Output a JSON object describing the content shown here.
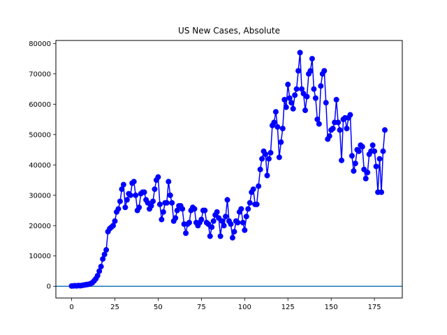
{
  "chart_data": {
    "type": "line",
    "title": "US New Cases, Absolute",
    "xlabel": "",
    "ylabel": "",
    "xlim": [
      -9.1,
      191.1
    ],
    "ylim": [
      -3856,
      81000
    ],
    "xticks": [
      0,
      25,
      50,
      75,
      100,
      125,
      150,
      175
    ],
    "yticks": [
      0,
      10000,
      20000,
      30000,
      40000,
      50000,
      60000,
      70000,
      80000
    ],
    "grid": false,
    "legend": "none",
    "baseline": 0,
    "colors": {
      "series": "#0000ff",
      "baseline": "#1f77b4"
    },
    "series": [
      {
        "values": [
          100,
          150,
          200,
          150,
          250,
          200,
          300,
          400,
          500,
          600,
          700,
          900,
          1200,
          1800,
          2500,
          3500,
          5000,
          6500,
          9000,
          10500,
          12000,
          18000,
          19000,
          19500,
          20000,
          21500,
          24500,
          25500,
          28000,
          32000,
          33500,
          26000,
          28500,
          30500,
          30000,
          34000,
          34500,
          30000,
          25000,
          26000,
          30500,
          31000,
          31000,
          28500,
          27500,
          25500,
          26500,
          28000,
          32000,
          35000,
          36000,
          27000,
          22000,
          24500,
          27500,
          27500,
          34500,
          30000,
          27500,
          21500,
          22500,
          25000,
          26500,
          26500,
          25500,
          20500,
          17500,
          20500,
          21000,
          25000,
          26000,
          25500,
          21000,
          20000,
          21000,
          22000,
          25000,
          25000,
          21000,
          20500,
          16500,
          19500,
          21500,
          23500,
          24500,
          22500,
          16500,
          21500,
          20000,
          23000,
          28500,
          21500,
          20500,
          16000,
          18000,
          21500,
          21000,
          24500,
          25500,
          21000,
          18500,
          23000,
          25500,
          27500,
          31000,
          32000,
          27000,
          27000,
          33000,
          38500,
          42000,
          44500,
          43500,
          36500,
          42000,
          44000,
          53000,
          54000,
          57500,
          52500,
          42500,
          47500,
          52000,
          61500,
          59000,
          66500,
          62000,
          60500,
          58500,
          63000,
          65000,
          71000,
          77000,
          65000,
          63500,
          58000,
          62500,
          70000,
          71000,
          75000,
          65000,
          62000,
          55000,
          53500,
          66000,
          70000,
          71000,
          60500,
          48500,
          49500,
          51500,
          52000,
          54000,
          61500,
          54000,
          51500,
          41500,
          55000,
          55500,
          52000,
          55500,
          56500,
          43000,
          38000,
          40500,
          45000,
          44500,
          46500,
          46000,
          38500,
          35500,
          37500,
          43500,
          44500,
          46500,
          44500,
          39500,
          31000,
          42000,
          31000,
          44500,
          51500
        ]
      }
    ]
  }
}
